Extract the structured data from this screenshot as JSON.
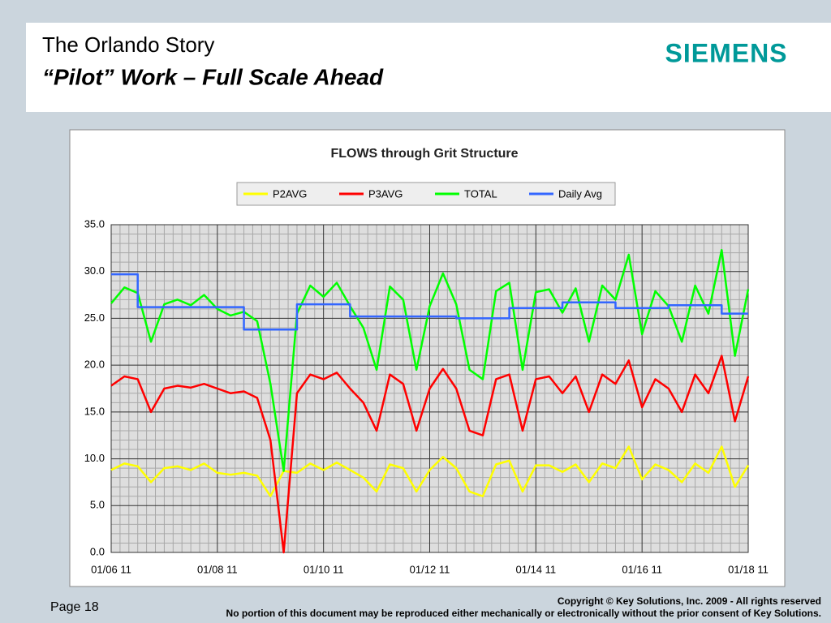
{
  "header": {
    "title": "The Orlando Story",
    "subtitle": "“Pilot” Work – Full Scale Ahead",
    "logo": "SIEMENS"
  },
  "chart_data": {
    "type": "line",
    "title": "FLOWS through Grit Structure",
    "x": [
      0,
      0.25,
      0.5,
      0.75,
      1,
      1.25,
      1.5,
      1.75,
      2,
      2.25,
      2.5,
      2.75,
      3,
      3.25,
      3.5,
      3.75,
      4,
      4.25,
      4.5,
      4.75,
      5,
      5.25,
      5.5,
      5.75,
      6,
      6.25,
      6.5,
      6.75,
      7,
      7.25,
      7.5,
      7.75,
      8,
      8.25,
      8.5,
      8.75,
      9,
      9.25,
      9.5,
      9.75,
      10,
      10.25,
      10.5,
      10.75,
      11,
      11.25,
      11.5,
      11.75,
      12
    ],
    "xlim": [
      0,
      12
    ],
    "xticks": [
      {
        "value": 0,
        "label": "01/06 11"
      },
      {
        "value": 2,
        "label": "01/08 11"
      },
      {
        "value": 4,
        "label": "01/10 11"
      },
      {
        "value": 6,
        "label": "01/12 11"
      },
      {
        "value": 8,
        "label": "01/14 11"
      },
      {
        "value": 10,
        "label": "01/16 11"
      },
      {
        "value": 12,
        "label": "01/18 11"
      }
    ],
    "ylim": [
      0,
      35
    ],
    "yticks": [
      {
        "value": 0,
        "label": "0.0"
      },
      {
        "value": 5,
        "label": "5.0"
      },
      {
        "value": 10,
        "label": "10.0"
      },
      {
        "value": 15,
        "label": "15.0"
      },
      {
        "value": 20,
        "label": "20.0"
      },
      {
        "value": 25,
        "label": "25.0"
      },
      {
        "value": 30,
        "label": "30.0"
      },
      {
        "value": 35,
        "label": "35.0"
      }
    ],
    "grid": true,
    "series": [
      {
        "name": "P2AVG",
        "color": "#ffff00",
        "values": [
          8.8,
          9.5,
          9.2,
          7.5,
          9.0,
          9.2,
          8.8,
          9.5,
          8.5,
          8.3,
          8.5,
          8.2,
          6.0,
          8.7,
          8.5,
          9.5,
          8.8,
          9.6,
          8.8,
          8.0,
          6.5,
          9.4,
          9.0,
          6.5,
          8.8,
          10.2,
          9.0,
          6.5,
          6.0,
          9.4,
          9.8,
          6.5,
          9.3,
          9.3,
          8.6,
          9.4,
          7.5,
          9.5,
          9.0,
          11.3,
          7.8,
          9.4,
          8.8,
          7.5,
          9.5,
          8.5,
          11.3,
          7.0,
          9.3
        ]
      },
      {
        "name": "P3AVG",
        "color": "#ff0000",
        "values": [
          17.8,
          18.8,
          18.5,
          15.0,
          17.5,
          17.8,
          17.6,
          18.0,
          17.5,
          17.0,
          17.2,
          16.5,
          12.0,
          0,
          17.0,
          19.0,
          18.5,
          19.2,
          17.5,
          16.0,
          13.0,
          19.0,
          18.0,
          13.0,
          17.5,
          19.6,
          17.5,
          13.0,
          12.5,
          18.5,
          19.0,
          13.0,
          18.5,
          18.8,
          17.0,
          18.8,
          15.0,
          19.0,
          18.0,
          20.5,
          15.5,
          18.5,
          17.5,
          15.0,
          19.0,
          17.0,
          21.0,
          14.0,
          18.8
        ]
      },
      {
        "name": "TOTAL",
        "color": "#00ff00",
        "values": [
          26.6,
          28.3,
          27.7,
          22.5,
          26.5,
          27.0,
          26.4,
          27.5,
          26.0,
          25.3,
          25.7,
          24.7,
          18.0,
          8.7,
          25.5,
          28.5,
          27.3,
          28.8,
          26.3,
          24.0,
          19.5,
          28.4,
          27.0,
          19.5,
          26.3,
          29.8,
          26.5,
          19.5,
          18.5,
          27.9,
          28.8,
          19.5,
          27.8,
          28.1,
          25.6,
          28.2,
          22.5,
          28.5,
          27.0,
          31.8,
          23.3,
          27.9,
          26.3,
          22.5,
          28.5,
          25.5,
          32.3,
          21.0,
          28.1
        ]
      },
      {
        "name": "Daily Avg",
        "color": "#3366ff",
        "x": [
          0,
          0.5,
          0.5,
          2.5,
          2.5,
          3.5,
          3.5,
          4.5,
          4.5,
          6.5,
          6.5,
          7.5,
          7.5,
          8.5,
          8.5,
          9.5,
          9.5,
          10.5,
          10.5,
          11.5,
          11.5,
          12
        ],
        "values": [
          29.7,
          29.7,
          26.2,
          26.2,
          23.8,
          23.8,
          26.5,
          26.5,
          25.2,
          25.2,
          25.0,
          25.0,
          26.1,
          26.1,
          26.7,
          26.7,
          26.1,
          26.1,
          26.4,
          26.4,
          25.5,
          25.5
        ]
      }
    ]
  },
  "footer": {
    "page": "Page 18",
    "copyright": "Copyright © Key Solutions, Inc. 2009  -  All rights reserved",
    "notice": "No portion of this document may be reproduced either mechanically or electronically without the prior consent of Key Solutions."
  }
}
